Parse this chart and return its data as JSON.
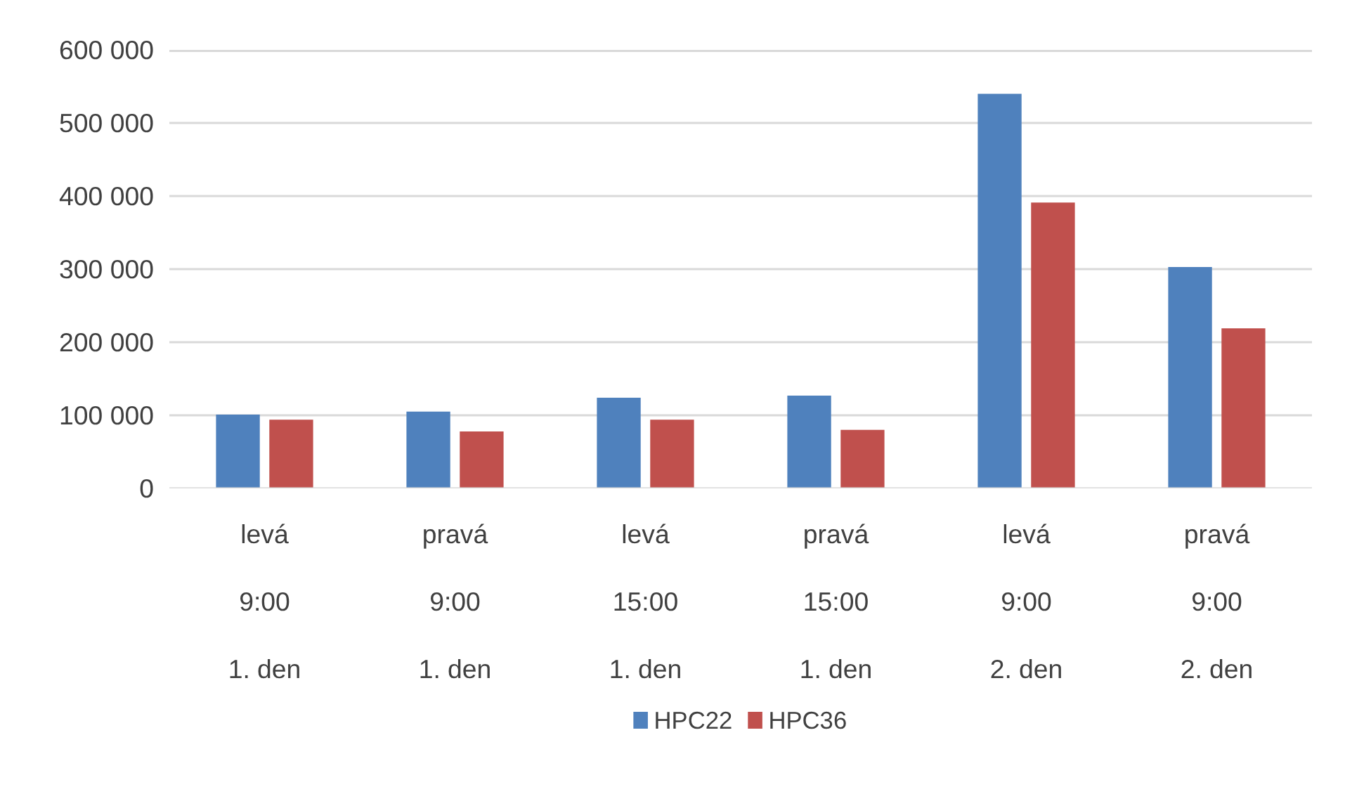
{
  "chart_data": {
    "type": "bar",
    "categories": [
      "levá\n9:00\n1. den",
      "pravá\n9:00\n1. den",
      "levá\n15:00\n1. den",
      "pravá\n15:00\n1. den",
      "levá\n9:00\n2. den",
      "pravá\n9:00\n2. den"
    ],
    "series": [
      {
        "name": "HPC22",
        "color": "#4f81bd",
        "values": [
          101000,
          105000,
          124000,
          127000,
          540000,
          303000
        ]
      },
      {
        "name": "HPC36",
        "color": "#c0504d",
        "values": [
          94000,
          78000,
          94000,
          80000,
          391000,
          219000
        ]
      }
    ],
    "ylim": [
      0,
      600000
    ],
    "yticks": [
      {
        "value": 0,
        "label": "0"
      },
      {
        "value": 100000,
        "label": "100 000"
      },
      {
        "value": 200000,
        "label": "200 000"
      },
      {
        "value": 300000,
        "label": "300 000"
      },
      {
        "value": 400000,
        "label": "400 000"
      },
      {
        "value": 500000,
        "label": "500 000"
      },
      {
        "value": 600000,
        "label": "600 000"
      }
    ],
    "grid": "y",
    "legend": "bottom"
  }
}
